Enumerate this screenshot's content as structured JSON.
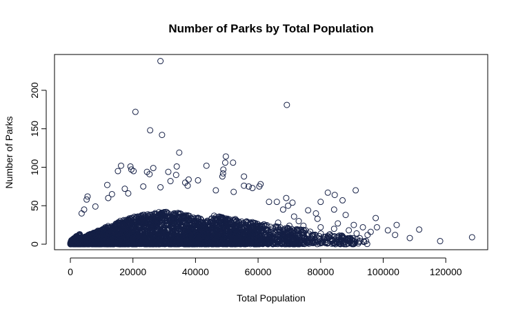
{
  "chart_data": {
    "type": "scatter",
    "title": "Number of Parks by Total Population",
    "xlabel": "Total Population",
    "ylabel": "Number of Parks",
    "xlim": [
      -5000,
      133000
    ],
    "ylim": [
      -8,
      245
    ],
    "x_ticks": [
      "0",
      "20000",
      "40000",
      "60000",
      "80000",
      "100000",
      "120000"
    ],
    "y_ticks": [
      "0",
      "50",
      "100",
      "150",
      "200"
    ],
    "point_color": "#141f45",
    "marker": "open-circle",
    "grid": false,
    "legend": "none",
    "points": [
      [
        28800,
        238
      ],
      [
        69200,
        181
      ],
      [
        20800,
        172
      ],
      [
        25500,
        148
      ],
      [
        29300,
        142
      ],
      [
        34800,
        119
      ],
      [
        49700,
        114
      ],
      [
        49500,
        106
      ],
      [
        52000,
        106
      ],
      [
        16200,
        102
      ],
      [
        19200,
        101
      ],
      [
        43500,
        102
      ],
      [
        48900,
        97
      ],
      [
        34000,
        101
      ],
      [
        19500,
        97
      ],
      [
        24500,
        94
      ],
      [
        26500,
        99
      ],
      [
        31300,
        94
      ],
      [
        25300,
        91
      ],
      [
        48800,
        92
      ],
      [
        48600,
        88
      ],
      [
        55500,
        88
      ],
      [
        33800,
        90
      ],
      [
        15200,
        95
      ],
      [
        20200,
        95
      ],
      [
        40800,
        83
      ],
      [
        37800,
        84
      ],
      [
        36700,
        80
      ],
      [
        32000,
        82
      ],
      [
        60800,
        78
      ],
      [
        55500,
        76
      ],
      [
        57000,
        75
      ],
      [
        60400,
        75
      ],
      [
        58200,
        73
      ],
      [
        91200,
        70
      ],
      [
        82300,
        67
      ],
      [
        84500,
        64
      ],
      [
        87000,
        57
      ],
      [
        80000,
        55
      ],
      [
        71000,
        54
      ],
      [
        11800,
        77
      ],
      [
        37500,
        76
      ],
      [
        28800,
        74
      ],
      [
        17400,
        72
      ],
      [
        23300,
        75
      ],
      [
        5500,
        62
      ],
      [
        5200,
        58
      ],
      [
        4400,
        45
      ],
      [
        3600,
        40
      ],
      [
        8000,
        49
      ],
      [
        18500,
        66
      ],
      [
        13300,
        65
      ],
      [
        12100,
        60
      ],
      [
        46500,
        70
      ],
      [
        52200,
        68
      ],
      [
        63500,
        55
      ],
      [
        66000,
        55
      ],
      [
        69000,
        60
      ],
      [
        69600,
        50
      ],
      [
        76000,
        44
      ],
      [
        78500,
        40
      ],
      [
        84300,
        45
      ],
      [
        88000,
        38
      ],
      [
        90600,
        25
      ],
      [
        91500,
        14
      ],
      [
        93500,
        22
      ],
      [
        96000,
        16
      ],
      [
        97600,
        34
      ],
      [
        98000,
        22
      ],
      [
        101500,
        18
      ],
      [
        104300,
        25
      ],
      [
        108500,
        8
      ],
      [
        111500,
        19
      ],
      [
        118200,
        4
      ],
      [
        128400,
        9
      ],
      [
        103800,
        12
      ],
      [
        95000,
        12
      ],
      [
        89500,
        6
      ],
      [
        92300,
        3
      ],
      [
        86000,
        9
      ],
      [
        81000,
        7
      ],
      [
        82800,
        9
      ],
      [
        84300,
        20
      ],
      [
        89000,
        18
      ],
      [
        75200,
        18
      ],
      [
        77300,
        12
      ],
      [
        72500,
        10
      ],
      [
        70800,
        15
      ],
      [
        67600,
        6
      ],
      [
        64000,
        12
      ],
      [
        62400,
        19
      ],
      [
        66400,
        28
      ],
      [
        73000,
        30
      ],
      [
        79000,
        33
      ],
      [
        74500,
        24
      ],
      [
        85500,
        27
      ],
      [
        80000,
        22
      ],
      [
        70000,
        24
      ],
      [
        71500,
        36
      ],
      [
        68000,
        45
      ]
    ]
  }
}
